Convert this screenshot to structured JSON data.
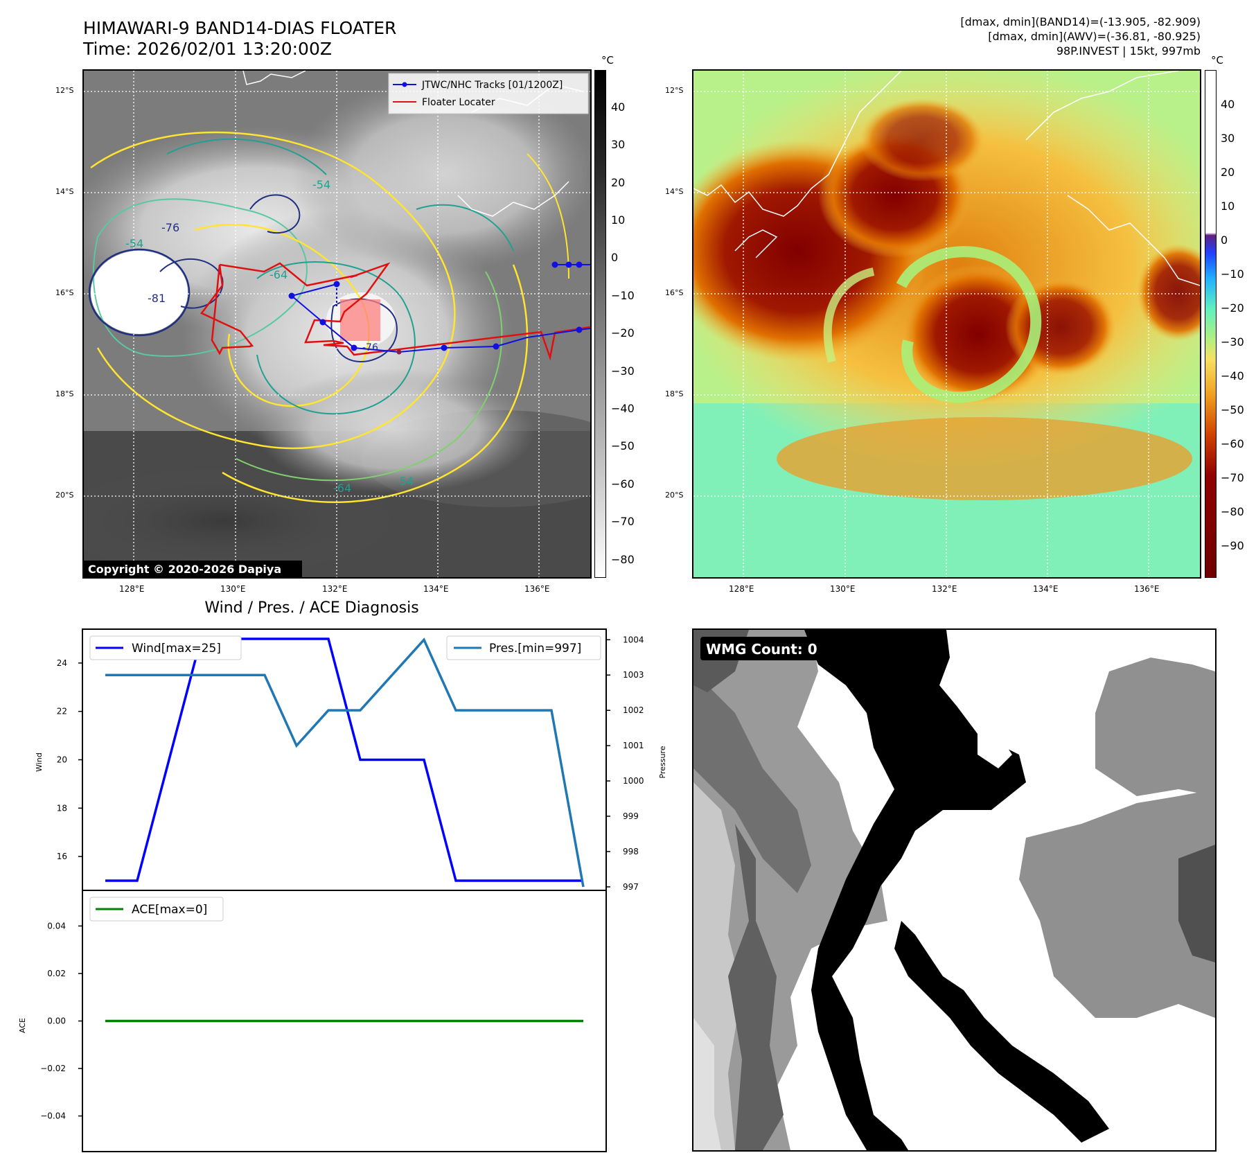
{
  "header": {
    "title": "HIMAWARI-9 BAND14-DIAS FLOATER",
    "time": "Time: 2026/02/01 13:20:00Z",
    "dmax_band14": "[dmax, dmin](BAND14)=(-13.905, -82.909)",
    "dmax_awv": "[dmax, dmin](AWV)=(-36.81, -80.925)",
    "storm": "98P.INVEST | 15kt, 997mb"
  },
  "map": {
    "lat_labels": [
      "12°S",
      "14°S",
      "16°S",
      "18°S",
      "20°S"
    ],
    "lon_labels": [
      "128°E",
      "130°E",
      "132°E",
      "134°E",
      "136°E"
    ],
    "legend_track": "JTWC/NHC Tracks [01/1200Z]",
    "legend_floater": "Floater Locater",
    "copyright": "Copyright © 2020-2026 Dapiya",
    "contour_labels": [
      "-76",
      "-81",
      "-54",
      "-64",
      "-76",
      "-54",
      "-64",
      "-54"
    ],
    "track_color": "#1010e0",
    "floater_color": "#e01010"
  },
  "colorbar_left": {
    "unit": "°C",
    "ticks": [
      "40",
      "30",
      "20",
      "10",
      "0",
      "−10",
      "−20",
      "−30",
      "−40",
      "−50",
      "−60",
      "−70",
      "−80"
    ]
  },
  "colorbar_right": {
    "unit": "°C",
    "ticks": [
      "40",
      "30",
      "20",
      "10",
      "0",
      "−10",
      "−20",
      "−30",
      "−40",
      "−50",
      "−60",
      "−70",
      "−80",
      "−90"
    ]
  },
  "diagnosis": {
    "title": "Wind / Pres. / ACE Diagnosis",
    "wind_legend": "Wind[max=25]",
    "pres_legend": "Pres.[min=997]",
    "ace_legend": "ACE[max=0]",
    "wind_axis": "Wind",
    "pres_axis": "Pressure",
    "ace_axis": "ACE",
    "wmg": "WMG Count: 0"
  },
  "chart_data": [
    {
      "type": "line",
      "title": "Wind / Pres. / ACE Diagnosis",
      "x": [
        0,
        1,
        2,
        3,
        4,
        5,
        6,
        7,
        8,
        9,
        10,
        11,
        12,
        13,
        14,
        15
      ],
      "series": [
        {
          "name": "Wind[max=25]",
          "axis": "left",
          "color": "#0000ff",
          "values": [
            15,
            15,
            20,
            25,
            25,
            25,
            25,
            25,
            20,
            20,
            20,
            15,
            15,
            15,
            15,
            15
          ]
        },
        {
          "name": "Pres.[min=997]",
          "axis": "right",
          "color": "#1f77b4",
          "values": [
            1003,
            1003,
            1003,
            1003,
            1003,
            1003,
            1001,
            1002,
            1002,
            1003,
            1004,
            1002,
            1002,
            1002,
            1002,
            997
          ]
        }
      ],
      "ylabel": "Wind",
      "y2label": "Pressure",
      "ylim": [
        14.6,
        25.4
      ],
      "y2lim": [
        996.9,
        1004.3
      ],
      "yticks": [
        16,
        18,
        20,
        22,
        24
      ],
      "y2ticks": [
        997,
        998,
        999,
        1000,
        1001,
        1002,
        1003,
        1004
      ]
    },
    {
      "type": "line",
      "x": [
        0,
        15
      ],
      "series": [
        {
          "name": "ACE[max=0]",
          "color": "#008000",
          "values": [
            0,
            0
          ]
        }
      ],
      "ylabel": "ACE",
      "ylim": [
        -0.055,
        0.055
      ],
      "yticks": [
        "0.04",
        "0.02",
        "0.00",
        "−0.02",
        "−0.04"
      ]
    }
  ]
}
